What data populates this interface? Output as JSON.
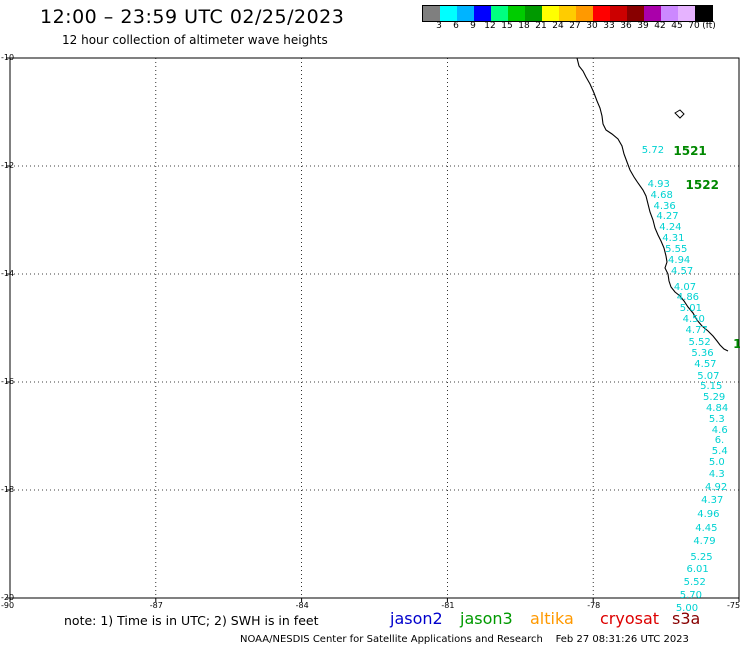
{
  "header": {
    "title": "12:00 – 23:59 UTC 02/25/2023",
    "subtitle": "12 hour collection of altimeter wave heights"
  },
  "legend": {
    "unit": "(ft)",
    "colors": [
      "#7f7f7f",
      "#00ffff",
      "#00b4ff",
      "#0000ff",
      "#00ff80",
      "#00cc00",
      "#009900",
      "#ffff00",
      "#ffcc00",
      "#ff9900",
      "#ff0000",
      "#cc0000",
      "#880000",
      "#aa00aa",
      "#cc88ff",
      "#e6b3ff",
      "#000000"
    ],
    "labels": [
      "3",
      "6",
      "9",
      "12",
      "15",
      "18",
      "21",
      "24",
      "27",
      "30",
      "33",
      "36",
      "39",
      "42",
      "45",
      "70"
    ]
  },
  "map": {
    "lat_labels": [
      "-10",
      "-12",
      "-14",
      "-16",
      "-18",
      "-20"
    ],
    "lon_labels": [
      "-90",
      "-87",
      "-84",
      "-81",
      "-78",
      "-75"
    ]
  },
  "passes": [
    {
      "id": "1521",
      "lon": -76.35,
      "lat": -11.73
    },
    {
      "id": "1522",
      "lon": -76.1,
      "lat": -12.35
    },
    {
      "id": "1",
      "lon": -75.12,
      "lat": -15.3
    }
  ],
  "wave_heights": [
    {
      "v": "5.72",
      "lon": -77.0,
      "lat": -11.73
    },
    {
      "v": "4.93",
      "lon": -76.88,
      "lat": -12.35
    },
    {
      "v": "4.68",
      "lon": -76.82,
      "lat": -12.55
    },
    {
      "v": "4.36",
      "lon": -76.76,
      "lat": -12.75
    },
    {
      "v": "4.27",
      "lon": -76.7,
      "lat": -12.95
    },
    {
      "v": "4.24",
      "lon": -76.64,
      "lat": -13.15
    },
    {
      "v": "4.31",
      "lon": -76.58,
      "lat": -13.35
    },
    {
      "v": "5.55",
      "lon": -76.52,
      "lat": -13.55
    },
    {
      "v": "4.94",
      "lon": -76.46,
      "lat": -13.75
    },
    {
      "v": "4.57",
      "lon": -76.4,
      "lat": -13.97
    },
    {
      "v": "4.07",
      "lon": -76.34,
      "lat": -14.25
    },
    {
      "v": "4.86",
      "lon": -76.28,
      "lat": -14.45
    },
    {
      "v": "5.01",
      "lon": -76.22,
      "lat": -14.65
    },
    {
      "v": "4.50",
      "lon": -76.16,
      "lat": -14.85
    },
    {
      "v": "4.77",
      "lon": -76.1,
      "lat": -15.05
    },
    {
      "v": "5.52",
      "lon": -76.04,
      "lat": -15.28
    },
    {
      "v": "5.36",
      "lon": -75.98,
      "lat": -15.48
    },
    {
      "v": "4.57",
      "lon": -75.92,
      "lat": -15.68
    },
    {
      "v": "5.07",
      "lon": -75.86,
      "lat": -15.9
    },
    {
      "v": "5.15",
      "lon": -75.8,
      "lat": -16.1
    },
    {
      "v": "5.29",
      "lon": -75.74,
      "lat": -16.3
    },
    {
      "v": "4.84",
      "lon": -75.68,
      "lat": -16.5
    },
    {
      "v": "5.3",
      "lon": -75.62,
      "lat": -16.7
    },
    {
      "v": "4.6",
      "lon": -75.56,
      "lat": -16.9
    },
    {
      "v": "6.",
      "lon": -75.5,
      "lat": -17.1
    },
    {
      "v": "5.4",
      "lon": -75.56,
      "lat": -17.3
    },
    {
      "v": "5.0",
      "lon": -75.62,
      "lat": -17.5
    },
    {
      "v": "4.3",
      "lon": -75.62,
      "lat": -17.72
    },
    {
      "v": "4.92",
      "lon": -75.7,
      "lat": -17.97
    },
    {
      "v": "4.37",
      "lon": -75.78,
      "lat": -18.2
    },
    {
      "v": "4.96",
      "lon": -75.86,
      "lat": -18.47
    },
    {
      "v": "4.45",
      "lon": -75.9,
      "lat": -18.72
    },
    {
      "v": "4.79",
      "lon": -75.94,
      "lat": -18.97
    },
    {
      "v": "5.25",
      "lon": -76.0,
      "lat": -19.25
    },
    {
      "v": "6.01",
      "lon": -76.08,
      "lat": -19.48
    },
    {
      "v": "5.52",
      "lon": -76.14,
      "lat": -19.72
    },
    {
      "v": "5.70",
      "lon": -76.22,
      "lat": -19.97
    },
    {
      "v": "5.00",
      "lon": -76.3,
      "lat": -20.21
    }
  ],
  "footer": {
    "note": "note:  1) Time is in UTC;  2) SWH is in feet",
    "satellites": [
      {
        "name": "jason2",
        "color": "#0000cc"
      },
      {
        "name": "jason3",
        "color": "#009900"
      },
      {
        "name": "altika",
        "color": "#ff9900"
      },
      {
        "name": "cryosat",
        "color": "#dd0000"
      },
      {
        "name": "s3a",
        "color": "#880000"
      }
    ],
    "credit": "NOAA/NESDIS Center for Satellite Applications and Research",
    "timestamp": "Feb 27 08:31:26 UTC 2023"
  }
}
